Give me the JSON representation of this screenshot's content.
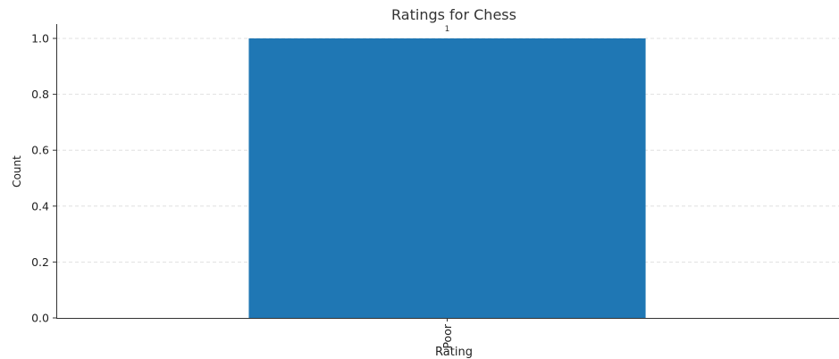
{
  "chart_data": {
    "type": "bar",
    "title": "Ratings for Chess",
    "xlabel": "Rating",
    "ylabel": "Count",
    "categories": [
      "Poor"
    ],
    "values": [
      1
    ],
    "data_labels": [
      "1"
    ],
    "ylim": [
      0,
      1.0
    ],
    "yticks": [
      "0.0",
      "0.2",
      "0.4",
      "0.6",
      "0.8",
      "1.0"
    ],
    "grid": true,
    "bar_color": "#1f77b4"
  }
}
